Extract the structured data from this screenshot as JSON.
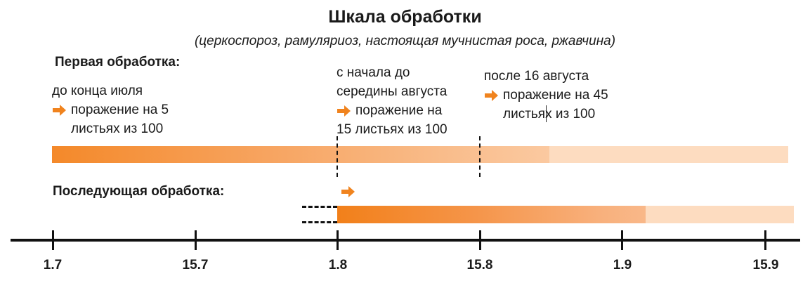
{
  "title": "Шкала обработки",
  "subtitle": "(церкоспороз, рамуляриоз, настоящая мучнистая роса, ржавчина)",
  "first_treatment": {
    "heading": "Первая обработка:",
    "blocks": [
      {
        "when": "до конца июля",
        "line1": "поражение на 5",
        "line2": "листьях из 100"
      },
      {
        "when_line1": "с начала до",
        "when_line2": "середины августа",
        "line1": "поражение на",
        "line2": "15 листьях из 100"
      },
      {
        "when": "после 16 августа",
        "line1": "поражение на 45",
        "line2": "листьях из 100"
      }
    ]
  },
  "subsequent_treatment": {
    "heading": "Последующая обработка:"
  },
  "axis": {
    "ticks": [
      "1.7",
      "15.7",
      "1.8",
      "15.8",
      "1.9",
      "15.9"
    ]
  },
  "colors": {
    "accent": "#f0831e",
    "bar_start": "#f4892a",
    "bar_mid": "#f8b57d",
    "bar_light": "#fddcc0",
    "axis": "#111111"
  },
  "icons": {
    "arrow": "arrow-right-icon"
  }
}
